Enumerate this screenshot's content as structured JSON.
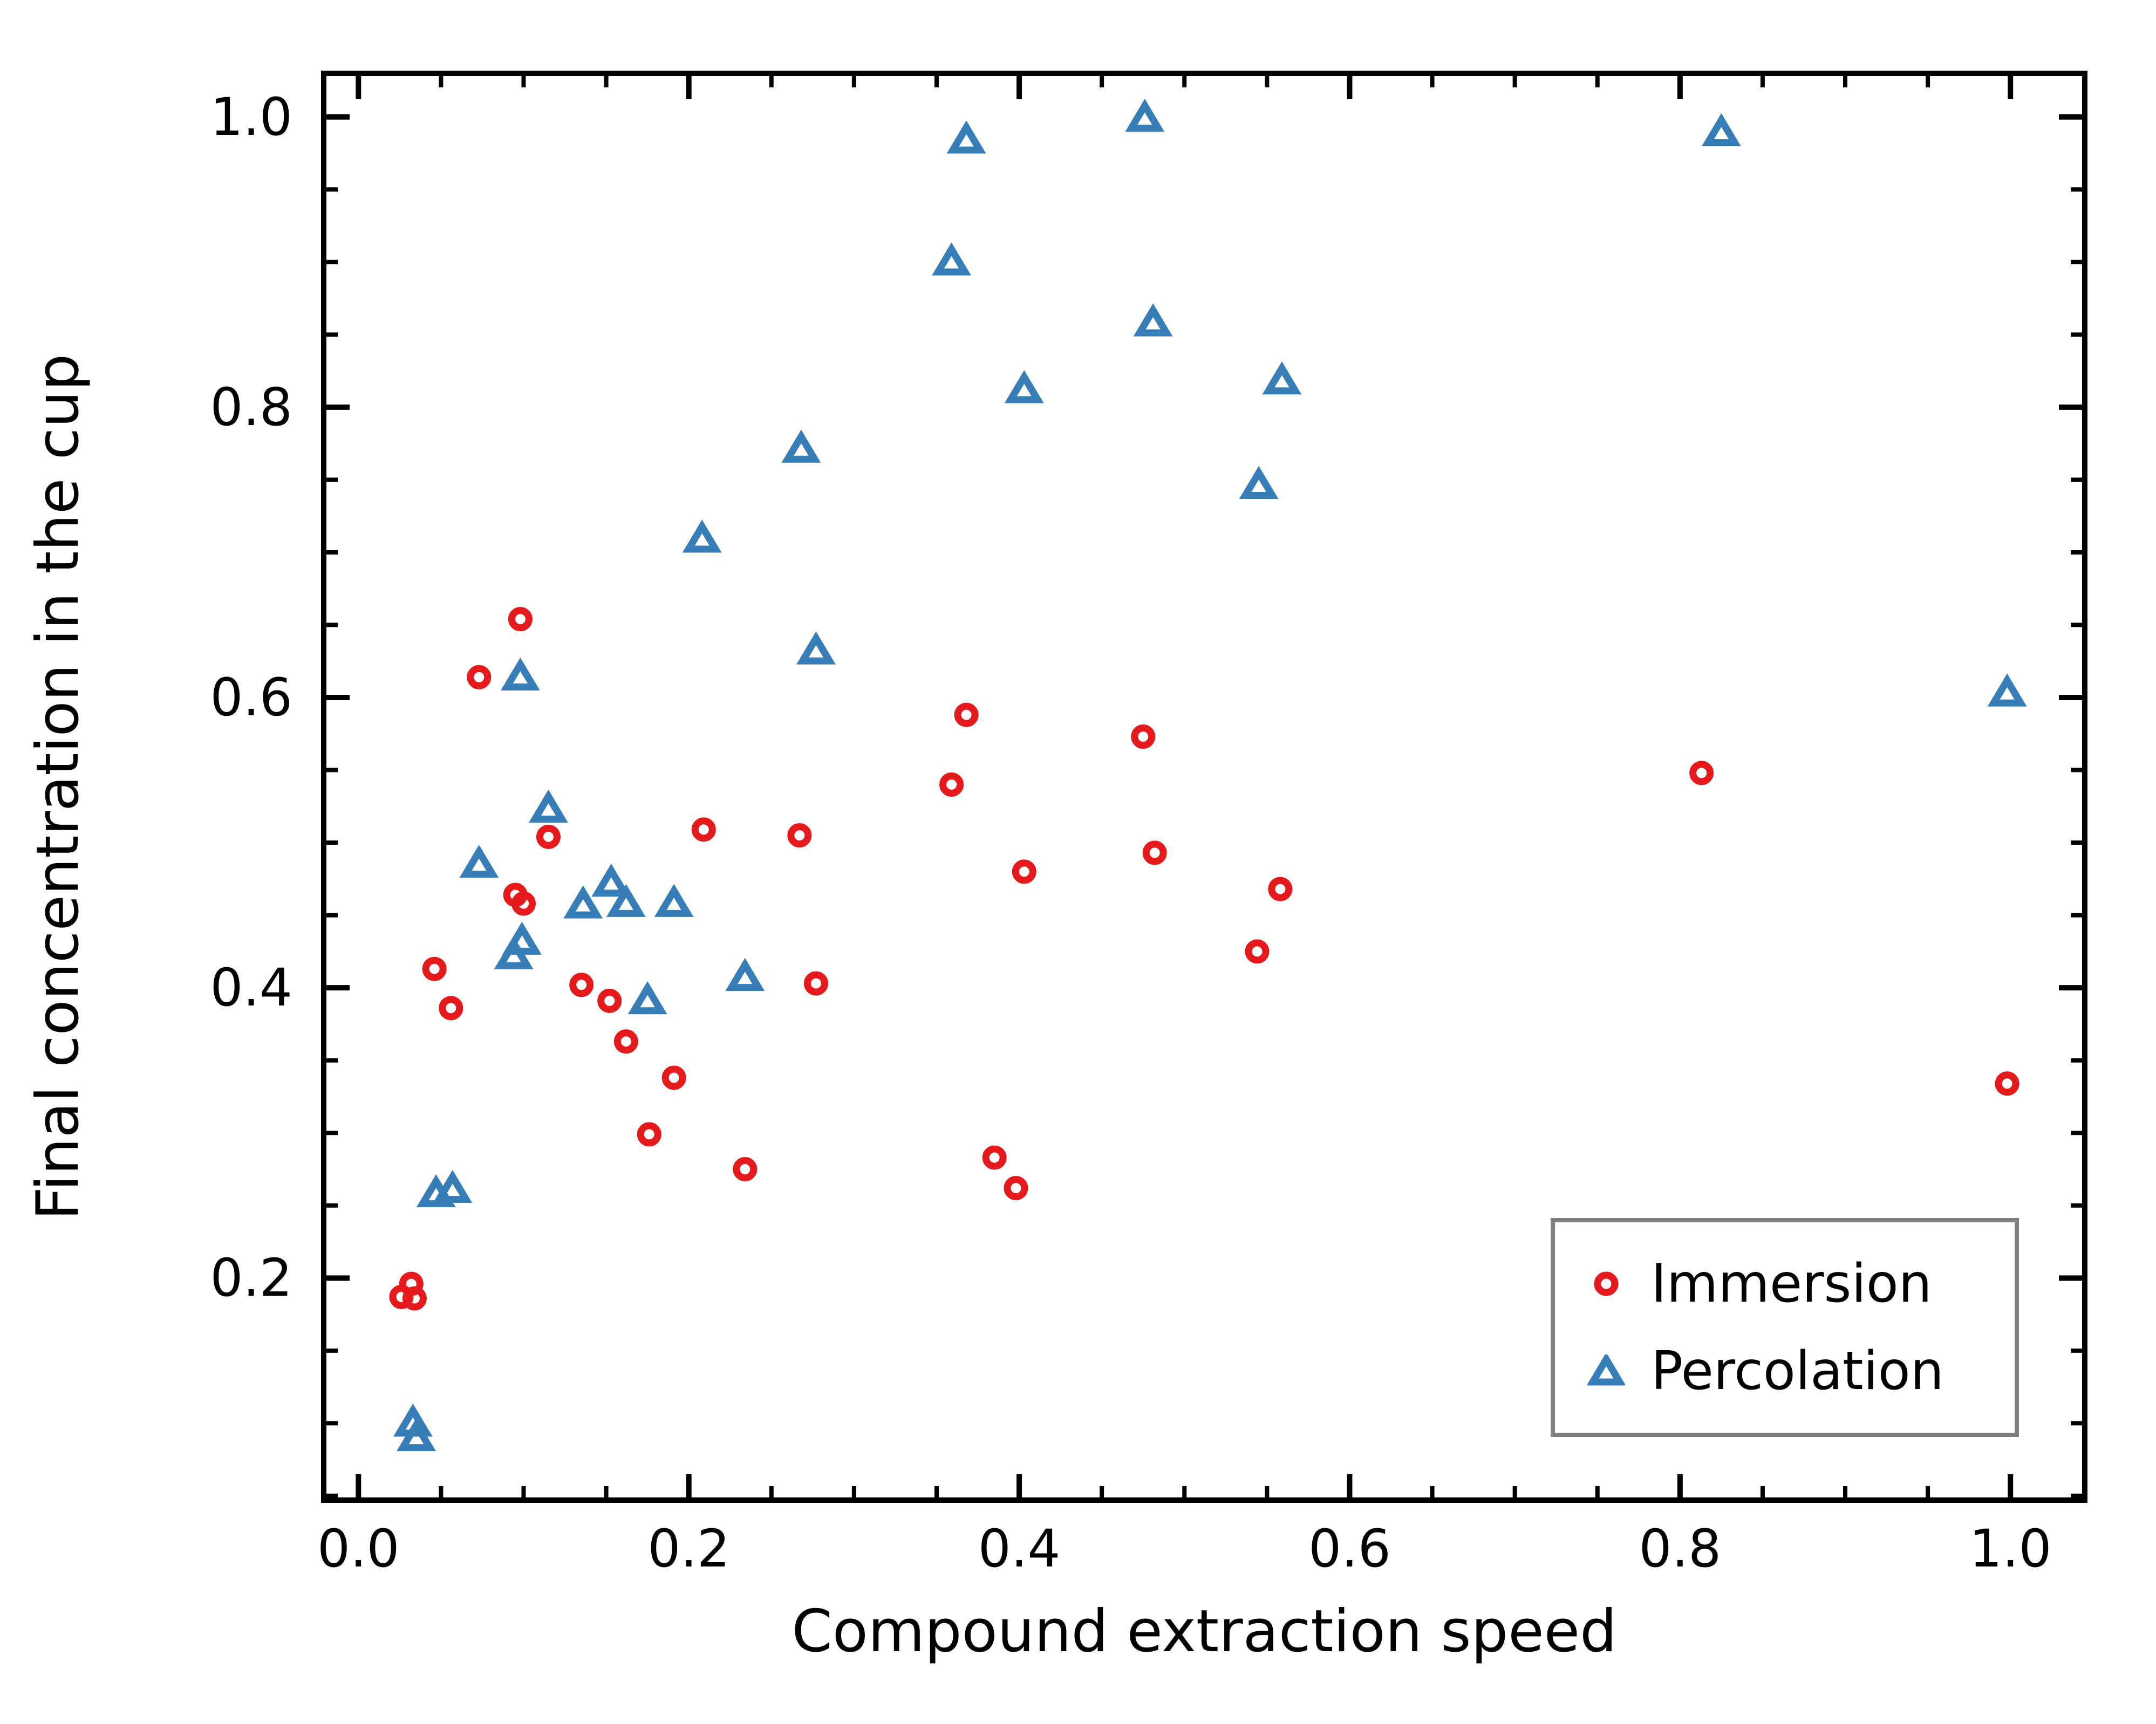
{
  "chart_data": {
    "type": "scatter",
    "title": "",
    "xlabel": "Compound extraction speed",
    "ylabel": "Final concentration in the cup",
    "xlim": [
      -0.021,
      1.045
    ],
    "ylim": [
      0.047,
      1.03
    ],
    "x_major_ticks": [
      0.0,
      0.2,
      0.4,
      0.6,
      0.8,
      1.0
    ],
    "x_tick_labels": [
      "0.0",
      "0.2",
      "0.4",
      "0.6",
      "0.8",
      "1.0"
    ],
    "y_major_ticks": [
      0.2,
      0.4,
      0.6,
      0.8,
      1.0
    ],
    "y_tick_labels": [
      "0.2",
      "0.4",
      "0.6",
      "0.8",
      "1.0"
    ],
    "minor_tick_step": 0.05,
    "grid": false,
    "tick_direction": "in",
    "legend_position": "lower right",
    "series": [
      {
        "name": "Immersion",
        "marker": "circle",
        "color": "#e41a1c",
        "points": [
          [
            0.026,
            0.187
          ],
          [
            0.032,
            0.196
          ],
          [
            0.034,
            0.186
          ],
          [
            0.046,
            0.413
          ],
          [
            0.056,
            0.386
          ],
          [
            0.073,
            0.614
          ],
          [
            0.095,
            0.464
          ],
          [
            0.098,
            0.654
          ],
          [
            0.1,
            0.458
          ],
          [
            0.115,
            0.504
          ],
          [
            0.135,
            0.402
          ],
          [
            0.152,
            0.391
          ],
          [
            0.162,
            0.363
          ],
          [
            0.176,
            0.299
          ],
          [
            0.191,
            0.338
          ],
          [
            0.209,
            0.509
          ],
          [
            0.234,
            0.275
          ],
          [
            0.267,
            0.505
          ],
          [
            0.277,
            0.403
          ],
          [
            0.359,
            0.54
          ],
          [
            0.368,
            0.588
          ],
          [
            0.385,
            0.283
          ],
          [
            0.398,
            0.262
          ],
          [
            0.403,
            0.48
          ],
          [
            0.475,
            0.573
          ],
          [
            0.482,
            0.493
          ],
          [
            0.544,
            0.425
          ],
          [
            0.558,
            0.468
          ],
          [
            0.813,
            0.548
          ],
          [
            0.998,
            0.334
          ]
        ]
      },
      {
        "name": "Percolation",
        "marker": "triangle-up",
        "color": "#377eb8",
        "points": [
          [
            0.033,
            0.101
          ],
          [
            0.035,
            0.091
          ],
          [
            0.047,
            0.259
          ],
          [
            0.057,
            0.262
          ],
          [
            0.073,
            0.486
          ],
          [
            0.094,
            0.423
          ],
          [
            0.098,
            0.615
          ],
          [
            0.099,
            0.433
          ],
          [
            0.115,
            0.524
          ],
          [
            0.136,
            0.458
          ],
          [
            0.153,
            0.473
          ],
          [
            0.162,
            0.459
          ],
          [
            0.175,
            0.392
          ],
          [
            0.191,
            0.459
          ],
          [
            0.208,
            0.71
          ],
          [
            0.234,
            0.408
          ],
          [
            0.268,
            0.772
          ],
          [
            0.277,
            0.633
          ],
          [
            0.359,
            0.901
          ],
          [
            0.368,
            0.985
          ],
          [
            0.403,
            0.813
          ],
          [
            0.476,
            1.0
          ],
          [
            0.481,
            0.859
          ],
          [
            0.545,
            0.747
          ],
          [
            0.559,
            0.819
          ],
          [
            0.825,
            0.99
          ],
          [
            0.998,
            0.604
          ]
        ]
      }
    ]
  },
  "colors": {
    "axis": "#000000",
    "text": "#000000",
    "legend_border": "#7f7f7f",
    "background": "#ffffff"
  }
}
